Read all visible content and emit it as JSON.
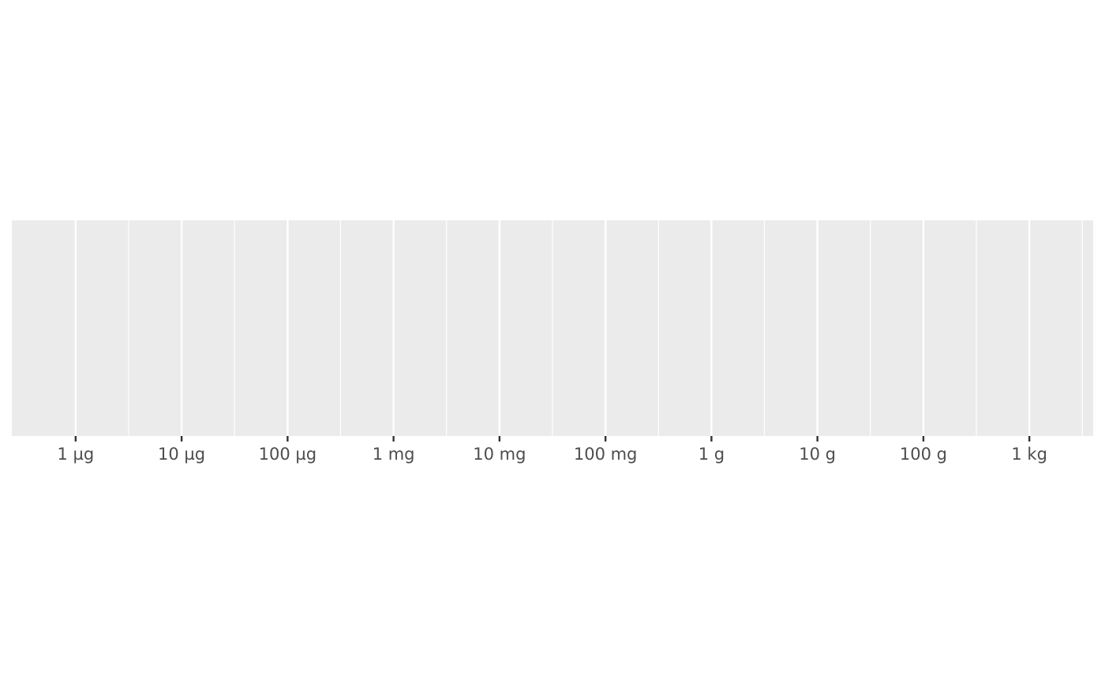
{
  "chart_data": {
    "type": "scatter",
    "title": "",
    "xlabel": "",
    "ylabel": "",
    "x_scale": "log10",
    "x_unit": "g",
    "xlim": [
      2.5e-07,
      4000
    ],
    "x_ticks": [
      1e-06,
      1e-05,
      0.0001,
      0.001,
      0.01,
      0.1,
      1,
      10,
      100,
      1000
    ],
    "x_tick_labels": [
      "1 µg",
      "10 µg",
      "100 µg",
      "1 mg",
      "10 mg",
      "100 mg",
      "1 g",
      "10 g",
      "100 g",
      "1 kg"
    ],
    "x_minor_ticks": [
      3.16e-06,
      3.16e-05,
      0.000316,
      0.00316,
      0.0316,
      0.316,
      3.16,
      31.6,
      316,
      3160
    ],
    "y_axis_shown": false,
    "grid": true,
    "legend": "none",
    "series": [],
    "colors": {
      "panel_background": "#ebebeb",
      "gridline": "#ffffff",
      "tick": "#333333",
      "tick_label": "#4d4d4d"
    }
  }
}
